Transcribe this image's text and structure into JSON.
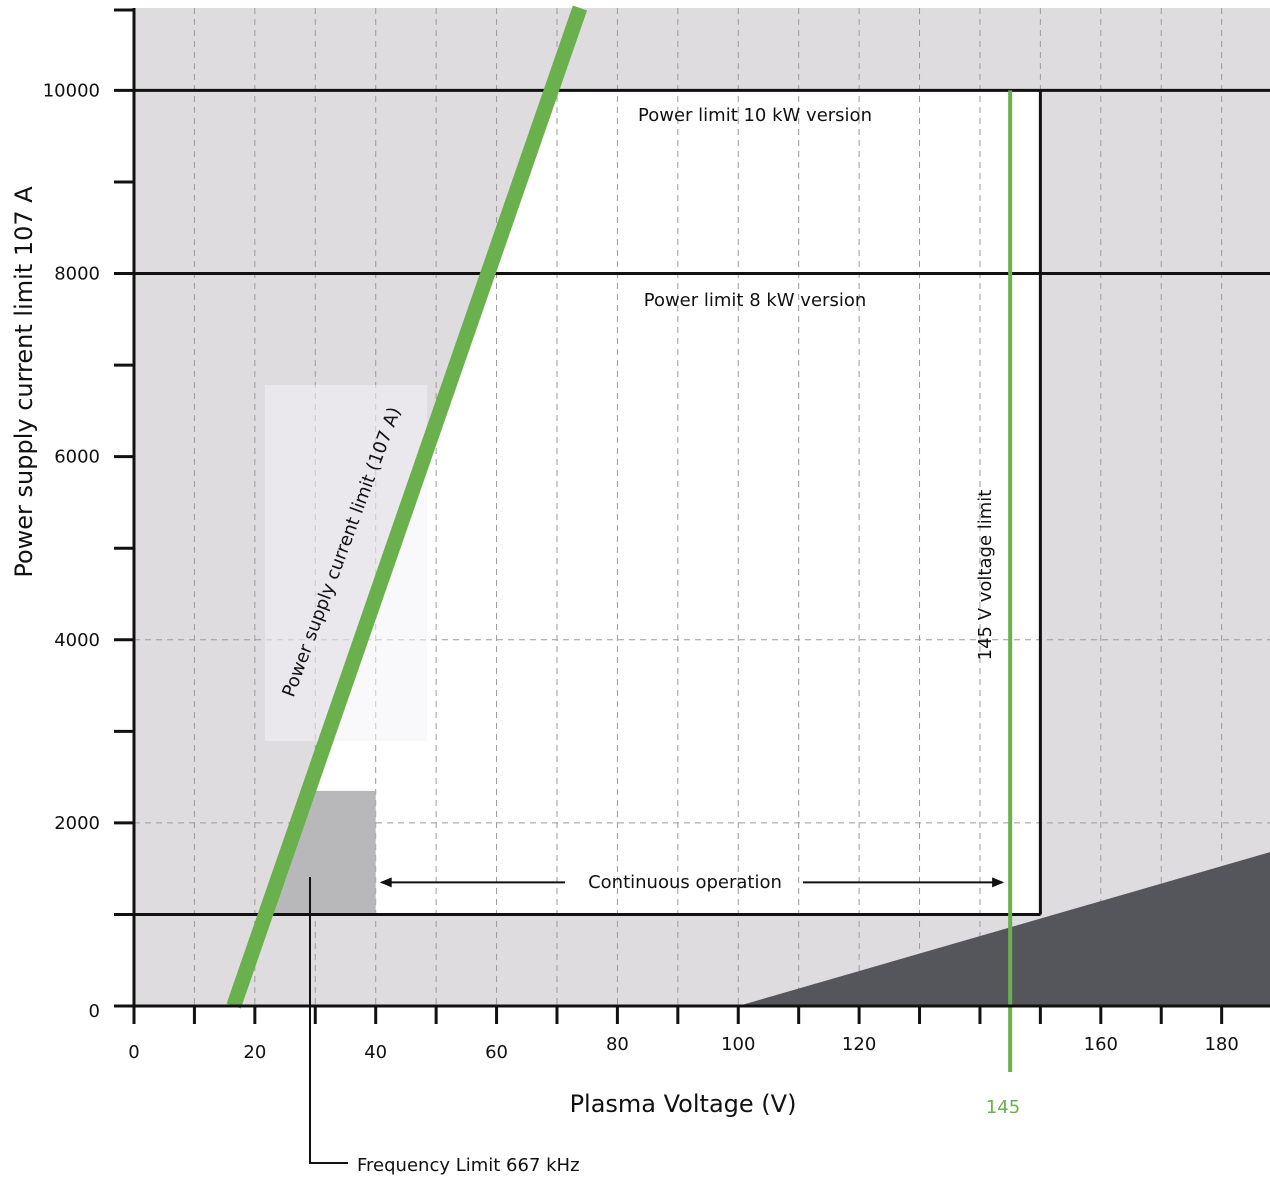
{
  "chart_data": {
    "type": "area",
    "title": "",
    "xlabel": "Plasma Voltage (V)",
    "ylabel": "Power supply current limit  107 A",
    "xlim": [
      0,
      188
    ],
    "ylim": [
      0,
      10900
    ],
    "grid": "dashed vertical every 10 V; dashed horizontal at 2000 and 4000",
    "x_ticks": [
      "0",
      "20",
      "40",
      "60",
      "80",
      "100",
      "120",
      "160",
      "180"
    ],
    "x_tick_values": [
      0,
      20,
      40,
      60,
      80,
      100,
      120,
      160,
      180
    ],
    "y_ticks": [
      "0",
      "2000",
      "4000",
      "6000",
      "8000",
      "10000"
    ],
    "y_tick_values": [
      0,
      2000,
      4000,
      6000,
      8000,
      10000
    ],
    "limits": {
      "current_limit_line": {
        "label": "Power supply current limit (107 A)",
        "points": [
          [
            16.5,
            0
          ],
          [
            73.8,
            10900
          ]
        ]
      },
      "power_10kw": {
        "label": "Power limit 10 kW version",
        "y": 10000
      },
      "power_8kw": {
        "label": "Power limit 8 kW version",
        "y": 8000
      },
      "voltage_limit": {
        "label": "145 V voltage limit",
        "x": 145,
        "value_label": "145"
      },
      "right_boundary_x": 150,
      "lower_boundary_y": 1000,
      "dark_region": [
        [
          100,
          0
        ],
        [
          188,
          1680
        ],
        [
          188,
          0
        ]
      ],
      "frequency_limit": {
        "label": "Frequency Limit 667 kHz",
        "x_range": [
          26.5,
          40
        ],
        "y_max": 2350
      },
      "continuous_operation": {
        "label": "Continuous operation",
        "x_range": [
          40,
          144
        ],
        "y": 1350
      }
    },
    "colors": {
      "forbidden": "#dedcdf",
      "allowed": "#ffffff",
      "dark_region": "#55565b",
      "frequency_box": "#b8b8ba",
      "green": "#6ab04c",
      "axis": "#111111"
    }
  }
}
